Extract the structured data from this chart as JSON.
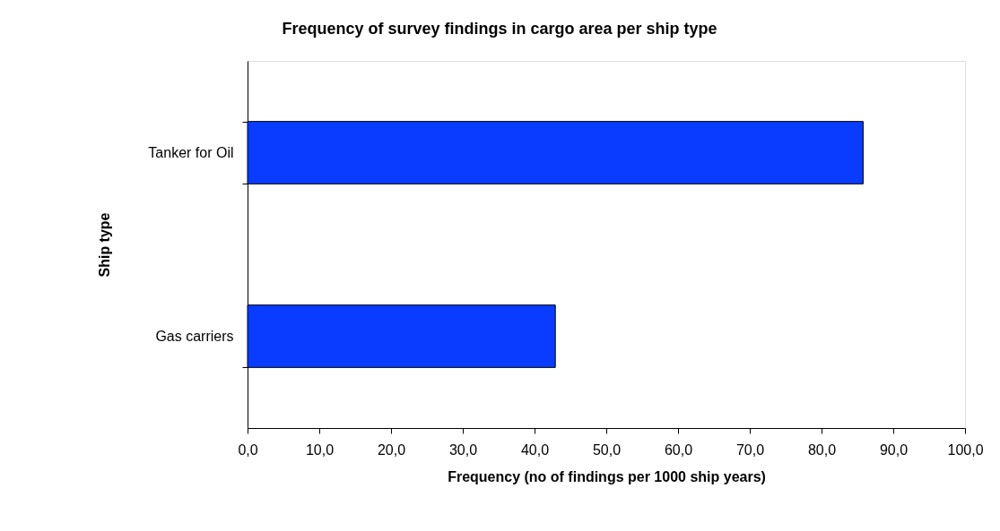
{
  "chart_data": {
    "type": "bar",
    "orientation": "horizontal",
    "title": "Frequency of survey findings in cargo area per ship type",
    "xlabel": "Frequency (no of findings per 1000 ship years)",
    "ylabel": "Ship type",
    "categories": [
      "Tanker for Oil",
      "Gas carriers"
    ],
    "values": [
      85.8,
      42.9
    ],
    "color": "#0a3cff",
    "xlim": [
      0,
      100
    ],
    "xticks": [
      {
        "value": 0,
        "label": "0,0"
      },
      {
        "value": 10,
        "label": "10,0"
      },
      {
        "value": 20,
        "label": "20,0"
      },
      {
        "value": 30,
        "label": "30,0"
      },
      {
        "value": 40,
        "label": "40,0"
      },
      {
        "value": 50,
        "label": "50,0"
      },
      {
        "value": 60,
        "label": "60,0"
      },
      {
        "value": 70,
        "label": "70,0"
      },
      {
        "value": 80,
        "label": "80,0"
      },
      {
        "value": 90,
        "label": "90,0"
      },
      {
        "value": 100,
        "label": "100,0"
      }
    ],
    "grid": false
  }
}
